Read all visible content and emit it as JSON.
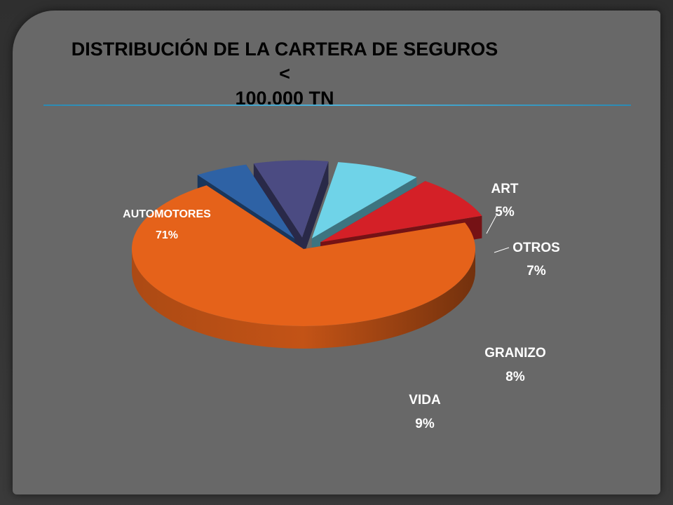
{
  "title_lines": [
    "DISTRIBUCIÓN DE LA CARTERA  DE SEGUROS <",
    "100.000 TN"
  ],
  "chart_data": {
    "type": "pie",
    "style": "3d-exploded",
    "title": "DISTRIBUCIÓN DE LA CARTERA  DE SEGUROS < 100.000 TN",
    "categories": [
      "AUTOMOTORES",
      "ART",
      "OTROS",
      "GRANIZO",
      "VIDA"
    ],
    "values": [
      71,
      5,
      7,
      8,
      9
    ],
    "labels": [
      "71%",
      "5%",
      "7%",
      "8%",
      "9%"
    ],
    "colors": [
      "#e5621a",
      "#2e62a5",
      "#4b4b82",
      "#6fd3e8",
      "#d42027"
    ],
    "label_colors": [
      "#ffffff",
      "#ffffff",
      "#ffffff",
      "#ffffff",
      "#ffffff"
    ]
  }
}
